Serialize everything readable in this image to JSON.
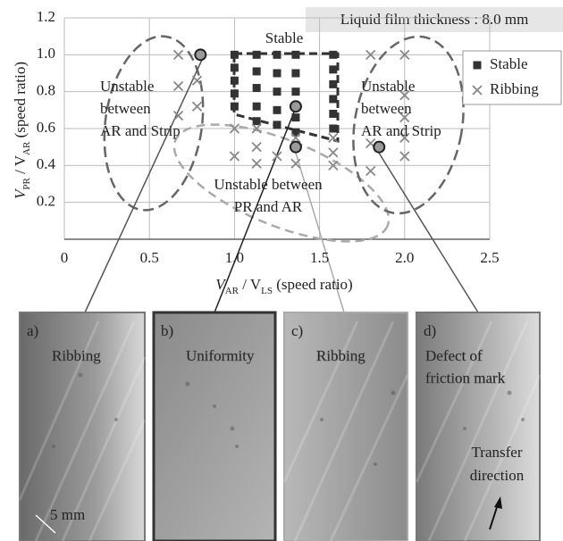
{
  "chart_data": {
    "type": "scatter",
    "title": "Liquid film thickness : 8.0 mm",
    "x_label_parts": [
      "V",
      "AR",
      " / V",
      "LS",
      " (speed ratio)"
    ],
    "y_label_parts": [
      "V",
      "PR",
      " / V",
      "AR",
      " (speed ratio)"
    ],
    "xlim": [
      0,
      2.5
    ],
    "ylim": [
      0,
      1.2
    ],
    "xticks": [
      0,
      0.5,
      {
        "value": 1.0,
        "label": "1.0"
      },
      1.5,
      {
        "value": 2.0,
        "label": "2.0"
      },
      2.5
    ],
    "yticks": [
      0.2,
      0.4,
      0.6,
      0.8,
      {
        "value": 1.0,
        "label": "1.0"
      },
      1.2
    ],
    "grid": true,
    "legend": "right",
    "series": [
      {
        "name": "Stable",
        "marker": "square",
        "color": "#333333",
        "x": [
          1.0,
          1.0,
          1.0,
          1.0,
          1.0,
          1.13,
          1.13,
          1.13,
          1.13,
          1.13,
          1.25,
          1.25,
          1.25,
          1.25,
          1.25,
          1.36,
          1.36,
          1.36,
          1.36,
          1.36,
          1.58,
          1.58,
          1.58,
          1.58,
          1.58,
          1.58
        ],
        "y": [
          1.0,
          0.93,
          0.86,
          0.79,
          0.72,
          1.0,
          0.91,
          0.82,
          0.72,
          0.64,
          1.0,
          0.9,
          0.8,
          0.7,
          0.62,
          1.0,
          0.9,
          0.8,
          0.66,
          0.58,
          1.0,
          0.92,
          0.84,
          0.76,
          0.68,
          0.6
        ]
      },
      {
        "name": "Ribbing",
        "marker": "cross",
        "color": "#888888",
        "x": [
          0.67,
          0.67,
          0.67,
          0.78,
          0.78,
          1.0,
          1.0,
          1.13,
          1.13,
          1.13,
          1.25,
          1.36,
          1.36,
          1.58,
          1.58,
          1.58,
          1.8,
          1.8,
          1.8,
          2.0,
          2.0,
          2.0,
          2.0,
          2.0
        ],
        "y": [
          1.0,
          0.83,
          0.67,
          0.86,
          0.72,
          0.6,
          0.45,
          0.6,
          0.5,
          0.41,
          0.45,
          0.55,
          0.41,
          0.55,
          0.47,
          0.4,
          1.0,
          0.52,
          0.37,
          1.0,
          0.78,
          0.66,
          0.55,
          0.45
        ]
      }
    ],
    "highlighted_points": {
      "x": [
        0.8,
        1.36,
        1.36,
        1.85
      ],
      "y": [
        1.0,
        0.72,
        0.5,
        0.5
      ]
    },
    "annotations": [
      {
        "lines": [
          "Stable"
        ]
      },
      {
        "lines": [
          "Unstable",
          "between",
          "AR and Strip"
        ]
      },
      {
        "lines": [
          "Unstable",
          "between",
          "AR and Strip"
        ]
      },
      {
        "lines": [
          "Unstable between",
          "PR and AR"
        ]
      }
    ]
  },
  "photos": {
    "panels": [
      {
        "letter": "a)",
        "caption": [
          "Ribbing"
        ]
      },
      {
        "letter": "b)",
        "caption": [
          "Uniformity"
        ]
      },
      {
        "letter": "c)",
        "caption": [
          "Ribbing"
        ]
      },
      {
        "letter": "d)",
        "caption": [
          "Defect of",
          "friction mark"
        ]
      }
    ],
    "transfer_label": [
      "Transfer",
      "direction"
    ],
    "scale_label": "5 mm"
  }
}
